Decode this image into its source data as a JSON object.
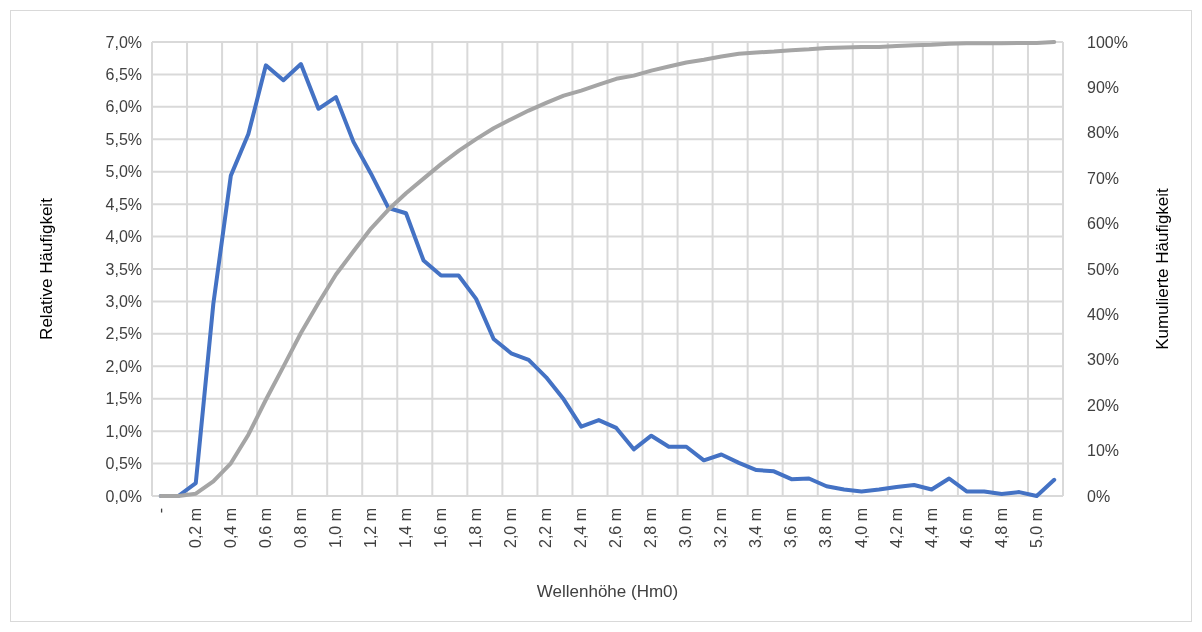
{
  "chart_data": {
    "type": "line",
    "xlabel": "Wellenhöhe (Hm0)",
    "ylabel": "Relative Häufigkeit",
    "y2label": "Kumulierte Häufigkeit",
    "categories": [
      "-",
      null,
      "0,2 m",
      null,
      "0,4 m",
      null,
      "0,6 m",
      null,
      "0,8 m",
      null,
      "1,0 m",
      null,
      "1,2 m",
      null,
      "1,4 m",
      null,
      "1,6 m",
      null,
      "1,8 m",
      null,
      "2,0 m",
      null,
      "2,2 m",
      null,
      "2,4 m",
      null,
      "2,6 m",
      null,
      "2,8 m",
      null,
      "3,0 m",
      null,
      "3,2 m",
      null,
      "3,4 m",
      null,
      "3,6 m",
      null,
      "3,8 m",
      null,
      "4,0 m",
      null,
      "4,2 m",
      null,
      "4,4 m",
      null,
      "4,6 m",
      null,
      "4,8 m",
      null,
      "5,0 m",
      null
    ],
    "series": [
      {
        "color": "#4472c4",
        "values": [
          0,
          0,
          0.2,
          2.96,
          4.94,
          5.58,
          6.64,
          6.41,
          6.66,
          5.97,
          6.15,
          5.46,
          4.97,
          4.44,
          4.36,
          3.63,
          3.4,
          3.4,
          3.04,
          2.42,
          2.2,
          2.1,
          1.83,
          1.49,
          1.07,
          1.17,
          1.05,
          0.72,
          0.93,
          0.76,
          0.76,
          0.55,
          0.64,
          0.51,
          0.4,
          0.38,
          0.26,
          0.27,
          0.15,
          0.1,
          0.07,
          0.1,
          0.14,
          0.17,
          0.1,
          0.27,
          0.07,
          0.07,
          0.03,
          0.06,
          0,
          0.25
        ]
      },
      {
        "color": "#a5a5a5",
        "axis": "y2",
        "values": [
          0,
          0,
          0.5,
          3.2,
          7.2,
          13.5,
          21.2,
          28.5,
          35.9,
          42.5,
          48.8,
          53.9,
          58.9,
          63.1,
          66.7,
          69.9,
          73.1,
          76,
          78.6,
          81,
          83,
          84.9,
          86.6,
          88.2,
          89.3,
          90.6,
          91.9,
          92.6,
          93.7,
          94.6,
          95.5,
          96.1,
          96.8,
          97.4,
          97.7,
          97.9,
          98.2,
          98.4,
          98.7,
          98.8,
          98.9,
          98.9,
          99.1,
          99.3,
          99.4,
          99.6,
          99.7,
          99.7,
          99.7,
          99.8,
          99.8,
          100
        ]
      }
    ],
    "ylim": [
      0,
      7
    ],
    "yticks": [
      {
        "value": 0,
        "label": "0,0%"
      },
      {
        "value": 0.5,
        "label": "0,5%"
      },
      {
        "value": 1,
        "label": "1,0%"
      },
      {
        "value": 1.5,
        "label": "1,5%"
      },
      {
        "value": 2,
        "label": "2,0%"
      },
      {
        "value": 2.5,
        "label": "2,5%"
      },
      {
        "value": 3,
        "label": "3,0%"
      },
      {
        "value": 3.5,
        "label": "3,5%"
      },
      {
        "value": 4,
        "label": "4,0%"
      },
      {
        "value": 4.5,
        "label": "4,5%"
      },
      {
        "value": 5,
        "label": "5,0%"
      },
      {
        "value": 5.5,
        "label": "5,5%"
      },
      {
        "value": 6,
        "label": "6,0%"
      },
      {
        "value": 6.5,
        "label": "6,5%"
      },
      {
        "value": 7,
        "label": "7,0%"
      }
    ],
    "y2lim": [
      0,
      100
    ],
    "y2ticks": [
      {
        "value": 0,
        "label": "0%"
      },
      {
        "value": 10,
        "label": "10%"
      },
      {
        "value": 20,
        "label": "20%"
      },
      {
        "value": 30,
        "label": "30%"
      },
      {
        "value": 40,
        "label": "40%"
      },
      {
        "value": 50,
        "label": "50%"
      },
      {
        "value": 60,
        "label": "60%"
      },
      {
        "value": 70,
        "label": "70%"
      },
      {
        "value": 80,
        "label": "80%"
      },
      {
        "value": 90,
        "label": "90%"
      },
      {
        "value": 100,
        "label": "100%"
      }
    ],
    "grid": true,
    "marker": "none",
    "line_style": "solid"
  }
}
